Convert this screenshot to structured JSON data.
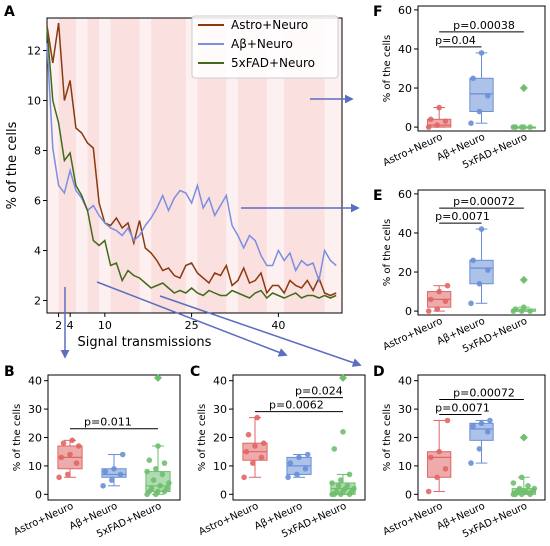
{
  "chart_data": [
    {
      "panel": "A",
      "type": "line",
      "xlabel": "Signal transmissions",
      "ylabel": "% of the cells",
      "xticks": [
        2,
        4,
        10,
        25,
        40
      ],
      "yticks": [
        2,
        4,
        6,
        8,
        10,
        12
      ],
      "xlim": [
        0,
        51
      ],
      "ylim": [
        1.5,
        13.3
      ],
      "legend_position": "top-right",
      "series": [
        {
          "name": "Astro+Neuro",
          "color": "#8b3a0f",
          "values": [
            13.0,
            11.5,
            13.1,
            10.0,
            10.8,
            8.9,
            8.7,
            8.3,
            8.1,
            5.9,
            5.1,
            5.0,
            5.3,
            4.9,
            5.1,
            4.3,
            5.2,
            4.1,
            3.9,
            3.6,
            3.2,
            3.3,
            3.0,
            2.9,
            3.4,
            3.5,
            3.1,
            2.9,
            2.7,
            3.1,
            3.0,
            3.4,
            2.6,
            2.8,
            3.3,
            2.7,
            2.8,
            3.1,
            2.3,
            2.6,
            2.6,
            2.3,
            2.8,
            2.6,
            2.5,
            2.8,
            2.4,
            2.9,
            2.3,
            2.2,
            2.3
          ]
        },
        {
          "name": "Aβ+Neuro",
          "color": "#7b8fe0",
          "values": [
            12.3,
            8.1,
            6.6,
            6.3,
            7.2,
            6.4,
            6.1,
            5.6,
            5.8,
            5.4,
            5.1,
            4.9,
            4.8,
            4.6,
            4.9,
            4.4,
            4.6,
            5.0,
            5.3,
            5.7,
            6.2,
            5.6,
            6.1,
            6.4,
            6.3,
            5.9,
            6.6,
            5.7,
            6.1,
            5.4,
            5.8,
            6.2,
            5.0,
            4.6,
            4.1,
            4.6,
            4.4,
            3.8,
            3.4,
            3.4,
            4.0,
            3.6,
            3.9,
            3.2,
            3.6,
            3.4,
            3.5,
            2.8,
            4.0,
            3.6,
            3.4
          ]
        },
        {
          "name": "5xFAD+Neuro",
          "color": "#3f6b1a",
          "values": [
            12.9,
            10.0,
            9.1,
            7.6,
            7.9,
            6.6,
            6.2,
            5.6,
            4.4,
            4.2,
            4.4,
            3.4,
            3.5,
            2.8,
            3.2,
            3.0,
            2.9,
            2.7,
            2.5,
            2.6,
            2.7,
            2.5,
            2.3,
            2.4,
            2.3,
            2.5,
            2.3,
            2.2,
            2.4,
            2.3,
            2.2,
            2.2,
            2.4,
            2.3,
            2.2,
            2.1,
            2.3,
            2.4,
            2.1,
            2.3,
            2.2,
            2.1,
            2.2,
            2.3,
            2.1,
            2.2,
            2.2,
            2.1,
            2.2,
            2.1,
            2.2
          ]
        }
      ]
    },
    {
      "panel": "B",
      "type": "box",
      "ylabel": "% of the cells",
      "ylim": [
        -2,
        42
      ],
      "yticks": [
        0,
        10,
        20,
        30,
        40
      ],
      "categories": [
        "Astro+Neuro",
        "Aβ+Neuro",
        "5xFAD+Neuro"
      ],
      "boxes": [
        {
          "color": "#e06666",
          "min": 6,
          "q1": 9,
          "median": 13,
          "q3": 17,
          "max": 19,
          "points": [
            6,
            7,
            11,
            13,
            14,
            17,
            18,
            19
          ]
        },
        {
          "color": "#6a8fd6",
          "min": 3,
          "q1": 6,
          "median": 7,
          "q3": 9,
          "max": 14,
          "points": [
            3,
            5,
            7,
            8,
            9,
            14
          ]
        },
        {
          "color": "#6fbf6f",
          "min": 0,
          "q1": 1,
          "median": 3,
          "q3": 8,
          "max": 17,
          "points": [
            0,
            0,
            1,
            1,
            1,
            2,
            2,
            3,
            4,
            5,
            7,
            8,
            9,
            11,
            12,
            17,
            41
          ]
        }
      ],
      "pvalues": [
        {
          "label": "p=0.011",
          "from": 0,
          "to": 2
        }
      ]
    },
    {
      "panel": "C",
      "type": "box",
      "ylabel": "% of the cells",
      "ylim": [
        -2,
        42
      ],
      "yticks": [
        0,
        10,
        20,
        30,
        40
      ],
      "categories": [
        "Astro+Neuro",
        "Aβ+Neuro",
        "5xFAD+Neuro"
      ],
      "boxes": [
        {
          "color": "#e06666",
          "min": 6,
          "q1": 12,
          "median": 15,
          "q3": 18,
          "max": 27,
          "points": [
            6,
            11,
            13,
            15,
            17,
            18,
            21,
            27
          ]
        },
        {
          "color": "#6a8fd6",
          "min": 6,
          "q1": 7,
          "median": 10,
          "q3": 13,
          "max": 14,
          "points": [
            6,
            7,
            9,
            11,
            13,
            14
          ]
        },
        {
          "color": "#6fbf6f",
          "min": 0,
          "q1": 0,
          "median": 2,
          "q3": 4,
          "max": 7,
          "points": [
            0,
            0,
            0,
            0,
            1,
            1,
            1,
            2,
            2,
            3,
            3,
            4,
            5,
            7,
            16,
            22,
            41
          ]
        }
      ],
      "pvalues": [
        {
          "label": "p=0.0062",
          "from": 0,
          "to": 2
        },
        {
          "label": "p=0.024",
          "from": 1,
          "to": 2
        }
      ]
    },
    {
      "panel": "D",
      "type": "box",
      "ylabel": "% of the cells",
      "ylim": [
        -2,
        42
      ],
      "yticks": [
        0,
        10,
        20,
        30,
        40
      ],
      "categories": [
        "Astro+Neuro",
        "Aβ+Neuro",
        "5xFAD+Neuro"
      ],
      "boxes": [
        {
          "color": "#e06666",
          "min": 1,
          "q1": 6,
          "median": 13,
          "q3": 15,
          "max": 26,
          "points": [
            1,
            6,
            9,
            13,
            15,
            26
          ]
        },
        {
          "color": "#6a8fd6",
          "min": 11,
          "q1": 19,
          "median": 23,
          "q3": 25,
          "max": 26,
          "points": [
            11,
            16,
            22,
            24,
            25,
            26
          ]
        },
        {
          "color": "#6fbf6f",
          "min": 0,
          "q1": 0,
          "median": 1,
          "q3": 2,
          "max": 6,
          "points": [
            0,
            0,
            0,
            0,
            1,
            1,
            1,
            1,
            2,
            2,
            3,
            4,
            6,
            20
          ]
        }
      ],
      "pvalues": [
        {
          "label": "p=0.0071",
          "from": 0,
          "to": 1
        },
        {
          "label": "p=0.00072",
          "from": 0,
          "to": 2
        }
      ]
    },
    {
      "panel": "E",
      "type": "box",
      "ylabel": "% of the cells",
      "ylim": [
        -2,
        62
      ],
      "yticks": [
        0,
        20,
        40,
        60
      ],
      "categories": [
        "Astro+Neuro",
        "Aβ+Neuro",
        "5xFAD+Neuro"
      ],
      "boxes": [
        {
          "color": "#e06666",
          "min": 0,
          "q1": 2,
          "median": 6,
          "q3": 10,
          "max": 13,
          "points": [
            0,
            1,
            5,
            6,
            10,
            13
          ]
        },
        {
          "color": "#6a8fd6",
          "min": 4,
          "q1": 14,
          "median": 22,
          "q3": 26,
          "max": 42,
          "points": [
            4,
            14,
            21,
            26,
            42
          ]
        },
        {
          "color": "#6fbf6f",
          "min": 0,
          "q1": 0,
          "median": 0,
          "q3": 1,
          "max": 2,
          "points": [
            0,
            0,
            0,
            1,
            2,
            16
          ]
        }
      ],
      "pvalues": [
        {
          "label": "p=0.0071",
          "from": 0,
          "to": 1
        },
        {
          "label": "p=0.00072",
          "from": 0,
          "to": 2
        }
      ]
    },
    {
      "panel": "F",
      "type": "box",
      "ylabel": "% of the cells",
      "ylim": [
        -2,
        62
      ],
      "yticks": [
        0,
        20,
        40,
        60
      ],
      "categories": [
        "Astro+Neuro",
        "Aβ+Neuro",
        "5xFAD+Neuro"
      ],
      "boxes": [
        {
          "color": "#e06666",
          "min": 0,
          "q1": 0,
          "median": 1,
          "q3": 4,
          "max": 10,
          "points": [
            0,
            1,
            3,
            4,
            10
          ]
        },
        {
          "color": "#6a8fd6",
          "min": 2,
          "q1": 8,
          "median": 17,
          "q3": 25,
          "max": 38,
          "points": [
            2,
            8,
            16,
            25,
            38
          ]
        },
        {
          "color": "#6fbf6f",
          "min": 0,
          "q1": 0,
          "median": 0,
          "q3": 0,
          "max": 0,
          "points": [
            0,
            0,
            0,
            0,
            0,
            20
          ]
        }
      ],
      "pvalues": [
        {
          "label": "p=0.04",
          "from": 0,
          "to": 1
        },
        {
          "label": "p=0.00038",
          "from": 0,
          "to": 2
        }
      ]
    }
  ]
}
